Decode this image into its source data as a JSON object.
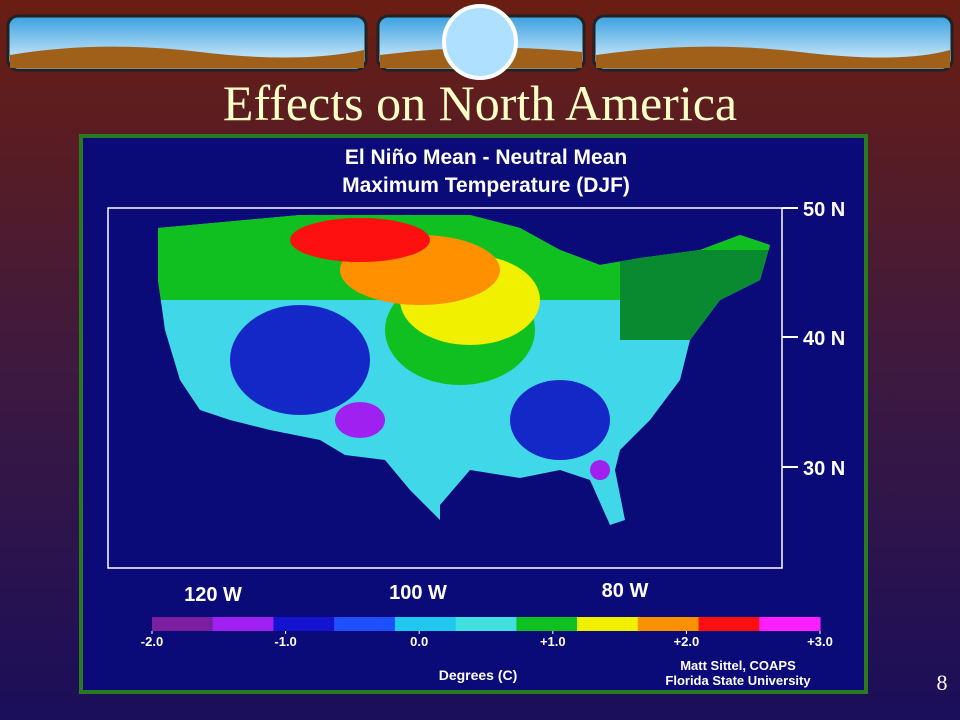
{
  "slide": {
    "title": "Effects on North America",
    "page_number": "8"
  },
  "map": {
    "title_lines": [
      "El Niño Mean - Neutral Mean",
      "Maximum Temperature (DJF)"
    ],
    "lat_labels": [
      "50 N",
      "40 N",
      "30 N"
    ],
    "lon_labels": [
      "120 W",
      "100 W",
      "80 W"
    ],
    "colorbar": {
      "lim": [
        -2,
        3
      ],
      "colors": [
        "#7a1fa0",
        "#a020f0",
        "#1414d0",
        "#1e50ff",
        "#20c8f0",
        "#40e0e0",
        "#10c020",
        "#f0f000",
        "#ff9000",
        "#ff1010",
        "#ff20ff"
      ],
      "ticks": [
        {
          "value": -2,
          "label": "-2.0"
        },
        {
          "value": -1,
          "label": "-1.0"
        },
        {
          "value": 0,
          "label": "0.0"
        },
        {
          "value": 1,
          "label": "+1.0"
        },
        {
          "value": 2,
          "label": "+2.0"
        },
        {
          "value": 3,
          "label": "+3.0"
        }
      ]
    },
    "colorbar_title": "Degrees (C)",
    "credit": [
      "Matt Sittel, COAPS",
      "Florida State University"
    ]
  }
}
